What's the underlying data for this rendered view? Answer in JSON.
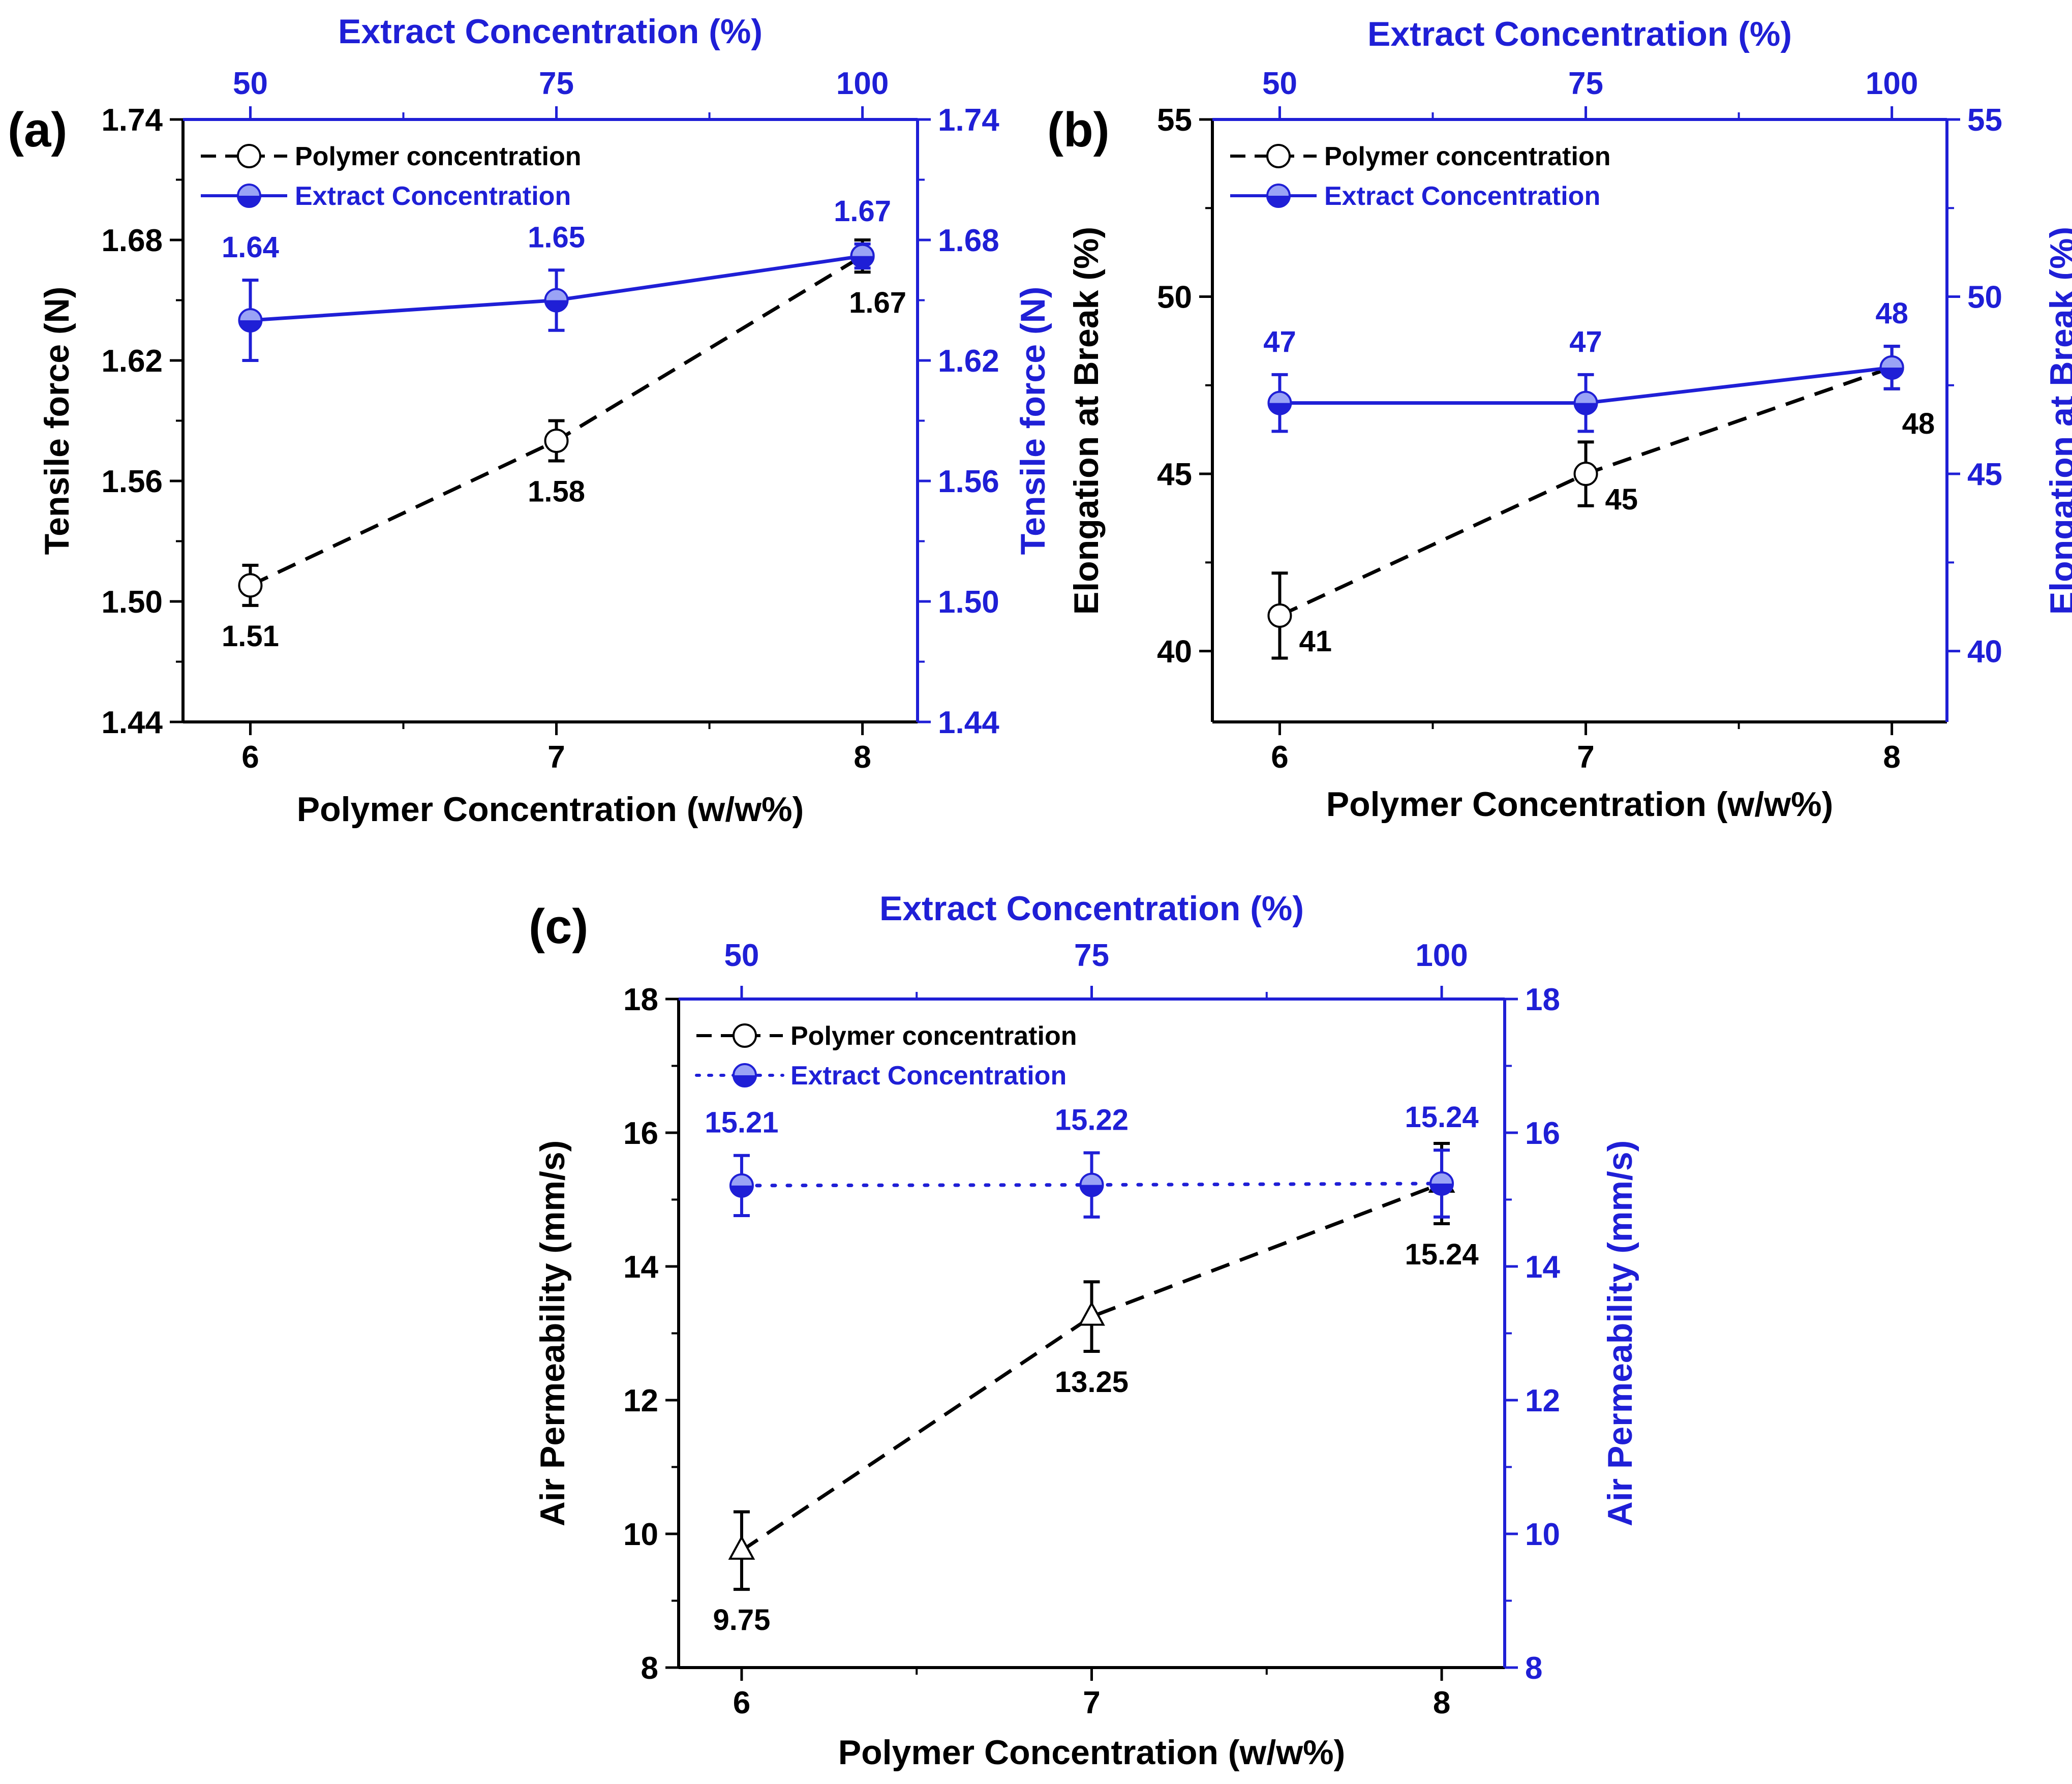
{
  "colors": {
    "left": "#000000",
    "right": "#1f1fd6",
    "frame": "#000000"
  },
  "charts": [
    {
      "panel_label": "(a)",
      "type": "line",
      "xlabel": "Polymer Concentration (w/w%)",
      "ylabel_left": "Tensile force (N)",
      "ylabel_right": "Tensile force (N)",
      "top_xlabel": "Extract Concentration (%)",
      "x_ticks": [
        "6",
        "7",
        "8"
      ],
      "top_ticks": [
        "50",
        "75",
        "100"
      ],
      "xlim": [
        5.78,
        8.18
      ],
      "ylim": [
        1.44,
        1.74
      ],
      "y_ticks": [
        "1.44",
        "1.50",
        "1.56",
        "1.62",
        "1.68",
        "1.74"
      ],
      "y_tick_values": [
        1.44,
        1.5,
        1.56,
        1.62,
        1.68,
        1.74
      ],
      "y_minor": [
        1.47,
        1.53,
        1.59,
        1.65,
        1.71
      ],
      "legend": {
        "position": "top-left",
        "items": [
          {
            "label": "Polymer concentration",
            "series": 0
          },
          {
            "label": "Extract Concentration",
            "series": 1
          }
        ]
      },
      "series": [
        {
          "name": "Polymer concentration",
          "style": "dashed",
          "marker": "circle",
          "axis": "left",
          "x": [
            6,
            7,
            8
          ],
          "y": [
            1.508,
            1.58,
            1.672
          ],
          "err": [
            0.01,
            0.01,
            0.008
          ],
          "labels": [
            "1.51",
            "1.58",
            "1.67"
          ],
          "label_pos": [
            "below",
            "below",
            "below-left"
          ]
        },
        {
          "name": "Extract Concentration",
          "style": "solid",
          "marker": "halfcircle",
          "axis": "right",
          "x": [
            6,
            7,
            8
          ],
          "y": [
            1.64,
            1.65,
            1.672
          ],
          "err": [
            0.02,
            0.015,
            0.006
          ],
          "labels": [
            "1.64",
            "1.65",
            "1.67"
          ],
          "label_pos": [
            "above",
            "above",
            "above"
          ]
        }
      ]
    },
    {
      "panel_label": "(b)",
      "type": "line",
      "xlabel": "Polymer Concentration (w/w%)",
      "ylabel_left": "Elongation at Break (%)",
      "ylabel_right": "Elongation at Break (%)",
      "top_xlabel": "Extract Concentration (%)",
      "x_ticks": [
        "6",
        "7",
        "8"
      ],
      "top_ticks": [
        "50",
        "75",
        "100"
      ],
      "xlim": [
        5.78,
        8.18
      ],
      "ylim": [
        38,
        55
      ],
      "y_ticks": [
        "40",
        "45",
        "50",
        "55"
      ],
      "y_tick_values": [
        40,
        45,
        50,
        55
      ],
      "y_minor": [
        42.5,
        47.5,
        52.5
      ],
      "legend": {
        "position": "top-left",
        "items": [
          {
            "label": "Polymer concentration",
            "series": 0
          },
          {
            "label": "Extract Concentration",
            "series": 1
          }
        ]
      },
      "series": [
        {
          "name": "Polymer concentration",
          "style": "dashed",
          "marker": "circle",
          "axis": "left",
          "x": [
            6,
            7,
            8
          ],
          "y": [
            41,
            45,
            48
          ],
          "err": [
            1.2,
            0.9,
            0.6
          ],
          "labels": [
            "41",
            "45",
            "48"
          ],
          "label_pos": [
            "right",
            "right",
            "below-right"
          ]
        },
        {
          "name": "Extract Concentration",
          "style": "solid",
          "marker": "halfcircle",
          "axis": "right",
          "x": [
            6,
            7,
            8
          ],
          "y": [
            47,
            47,
            48
          ],
          "err": [
            0.8,
            0.8,
            0.6
          ],
          "labels": [
            "47",
            "47",
            "48"
          ],
          "label_pos": [
            "above",
            "above",
            "above"
          ]
        }
      ]
    },
    {
      "panel_label": "(c)",
      "type": "line",
      "xlabel": "Polymer Concentration (w/w%)",
      "ylabel_left": "Air Permeability (mm/s)",
      "ylabel_right": "Air Permeability (mm/s)",
      "top_xlabel": "Extract Concentration (%)",
      "x_ticks": [
        "6",
        "7",
        "8"
      ],
      "top_ticks": [
        "50",
        "75",
        "100"
      ],
      "xlim": [
        5.82,
        8.18
      ],
      "ylim": [
        8,
        18
      ],
      "y_ticks": [
        "8",
        "10",
        "12",
        "14",
        "16",
        "18"
      ],
      "y_tick_values": [
        8,
        10,
        12,
        14,
        16,
        18
      ],
      "y_minor": [
        9,
        11,
        13,
        15,
        17
      ],
      "legend": {
        "position": "top-left",
        "items": [
          {
            "label": "Polymer concentration",
            "series": 0
          },
          {
            "label": "Extract Concentration",
            "series": 1
          }
        ]
      },
      "series": [
        {
          "name": "Polymer concentration",
          "style": "dashed",
          "marker": "triangle",
          "axis": "left",
          "x": [
            6,
            7,
            8
          ],
          "y": [
            9.75,
            13.25,
            15.24
          ],
          "err": [
            0.58,
            0.52,
            0.6
          ],
          "labels": [
            "9.75",
            "13.25",
            "15.24"
          ],
          "label_pos": [
            "below",
            "below",
            "below"
          ]
        },
        {
          "name": "Extract Concentration",
          "style": "dotted",
          "marker": "halfcircle",
          "axis": "right",
          "x": [
            6,
            7,
            8
          ],
          "y": [
            15.21,
            15.22,
            15.24
          ],
          "err": [
            0.45,
            0.48,
            0.5
          ],
          "labels": [
            "15.21",
            "15.22",
            "15.24"
          ],
          "label_pos": [
            "above",
            "above",
            "above"
          ]
        }
      ]
    }
  ]
}
